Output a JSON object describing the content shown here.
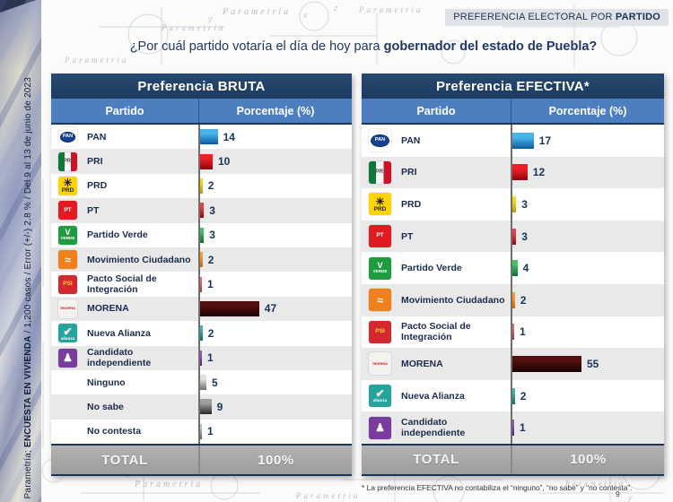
{
  "page": {
    "banner_normal": "PREFERENCIA ELECTORAL POR ",
    "banner_bold": "PARTIDO",
    "question_normal": "¿Por cuál partido votaría el día de hoy para ",
    "question_bold": "gobernador del estado de Puebla?",
    "sidebar_prefix": "Parametría; ",
    "sidebar_bold": "ENCUESTA EN VIVIENDA",
    "sidebar_suffix": " / 1,200 casos / Error (+/-) 2.8 % / Del 9 al 13 de junio de 2023",
    "footnote": "* La preferencia EFECTIVA no contabiliza el “ninguno”, “no sabe” y “no contesta”.",
    "page_number": "9",
    "watermark": "Parametria",
    "sketch_letters": [
      "x",
      "y",
      "z"
    ]
  },
  "colors": {
    "header_navy": "#1f3c63",
    "subheader_blue": "#4d7ec0",
    "row_alt_gray": "#e9e9e9",
    "total_gray": "#a6a6a6",
    "text_navy": "#16355c"
  },
  "chart_data": [
    {
      "type": "bar",
      "orientation": "horizontal",
      "title": "Preferencia BRUTA",
      "columns": [
        "Partido",
        "Porcentaje (%)"
      ],
      "categories": [
        "PAN",
        "PRI",
        "PRD",
        "PT",
        "Partido Verde",
        "Movimiento Ciudadano",
        "Pacto Social de Integración",
        "MORENA",
        "Nueva Alianza",
        "Candidato independiente",
        "Ninguno",
        "No sabe",
        "No contesta"
      ],
      "values": [
        14,
        10,
        2,
        3,
        3,
        2,
        1,
        47,
        2,
        1,
        5,
        9,
        1
      ],
      "xlim": [
        0,
        100
      ],
      "total_label": "TOTAL",
      "total_value": "100%"
    },
    {
      "type": "bar",
      "orientation": "horizontal",
      "title": "Preferencia EFECTIVA*",
      "columns": [
        "Partido",
        "Porcentaje (%)"
      ],
      "categories": [
        "PAN",
        "PRI",
        "PRD",
        "PT",
        "Partido Verde",
        "Movimiento Ciudadano",
        "Pacto Social de Integración",
        "MORENA",
        "Nueva Alianza",
        "Candidato independiente"
      ],
      "values": [
        17,
        12,
        3,
        3,
        4,
        2,
        1,
        55,
        2,
        1
      ],
      "xlim": [
        0,
        100
      ],
      "total_label": "TOTAL",
      "total_value": "100%"
    }
  ],
  "party_styles": {
    "PAN": {
      "kind": "pan",
      "bg": "#ffffff",
      "fg": "#ffffff",
      "lines": [
        "PAN"
      ],
      "bar_top": "#4ab4e8",
      "bar_bottom": "#075a9d"
    },
    "PRI": {
      "kind": "tricolor",
      "bg": "#f5f5f5",
      "fg": "#4a4a4a",
      "lines": [
        "PRI"
      ],
      "bar_top": "#f01e28",
      "bar_bottom": "#8f050b"
    },
    "PRD": {
      "kind": "plain",
      "bg": "#ffd400",
      "fg": "#1a1a1a",
      "lines": [
        "☀",
        "PRD"
      ],
      "bar_top": "#f8d41c",
      "bar_bottom": "#c09a00"
    },
    "PT": {
      "kind": "plain",
      "bg": "#e01b22",
      "fg": "#ffffff",
      "lines": [
        "PT"
      ],
      "bar_top": "#e84046",
      "bar_bottom": "#96070c"
    },
    "Partido Verde": {
      "kind": "plain",
      "bg": "#1f9c3f",
      "fg": "#ffffff",
      "lines": [
        "V",
        "VERDE"
      ],
      "bar_top": "#42c268",
      "bar_bottom": "#0b6f2e"
    },
    "Movimiento Ciudadano": {
      "kind": "plain",
      "bg": "#f08019",
      "fg": "#ffffff",
      "lines": [
        "≈"
      ],
      "bar_top": "#f89c31",
      "bar_bottom": "#c56905"
    },
    "Pacto Social de Integración": {
      "kind": "plain",
      "bg": "#d3282f",
      "fg": "#ffd23e",
      "lines": [
        "PSI"
      ],
      "bar_top": "#da6a6d",
      "bar_bottom": "#a83236"
    },
    "MORENA": {
      "kind": "plain",
      "bg": "#f4f2ee",
      "fg": "#c2242a",
      "lines": [
        "morena"
      ],
      "bar_top": "#54100f",
      "bar_bottom": "#180202"
    },
    "Nueva Alianza": {
      "kind": "plain",
      "bg": "#27a39d",
      "fg": "#ffffff",
      "lines": [
        "✔",
        "alianza"
      ],
      "bar_top": "#3db3ab",
      "bar_bottom": "#0c706b"
    },
    "Candidato independiente": {
      "kind": "plain",
      "bg": "#7a3b9e",
      "fg": "#ffffff",
      "lines": [
        "♟"
      ],
      "bar_top": "#9356bb",
      "bar_bottom": "#55207c"
    },
    "Ninguno": {
      "kind": "none",
      "bar_top": "#e0e0e0",
      "bar_bottom": "#6f6f6f"
    },
    "No sabe": {
      "kind": "none",
      "bar_top": "#9f9f9f",
      "bar_bottom": "#262626"
    },
    "No contesta": {
      "kind": "none",
      "bar_top": "#bdbdbd",
      "bar_bottom": "#5f5f5f"
    }
  }
}
